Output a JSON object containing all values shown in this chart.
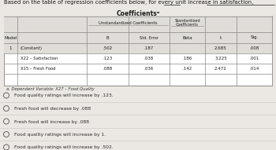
{
  "title_text": "Based on the table of regression coefficients below, for every unit increase in satisfaction,",
  "underline_word": "below",
  "table_title": "Coefficientsᵃ",
  "footnote": "a. Dependent Variable: X27 – Food Quality",
  "rows": [
    [
      "1",
      "(Constant)",
      ".502",
      ".187",
      "",
      "2.685",
      ".008"
    ],
    [
      "",
      "X22 – Satisfaction",
      ".123",
      ".038",
      ".186",
      "3.225",
      ".001"
    ],
    [
      "",
      "X15 – Fresh Food",
      ".088",
      ".036",
      ".142",
      "2.472",
      ".014"
    ]
  ],
  "options": [
    "Food quality ratings will increase by .123.",
    "Fresh food will decrease by .088",
    "Fresh food will increase by .088",
    "Food quality ratings will increase by 1.",
    "Food quality ratings will increase by .502."
  ],
  "bg_color": "#ebe8e3",
  "table_bg": "#ffffff",
  "table_header_bg": "#e0ddd8",
  "table_border_color": "#888888",
  "text_color": "#1a1a1a",
  "option_text_color": "#2a2a2a",
  "footnote_color": "#333333",
  "option_line_color": "#c8c4be"
}
